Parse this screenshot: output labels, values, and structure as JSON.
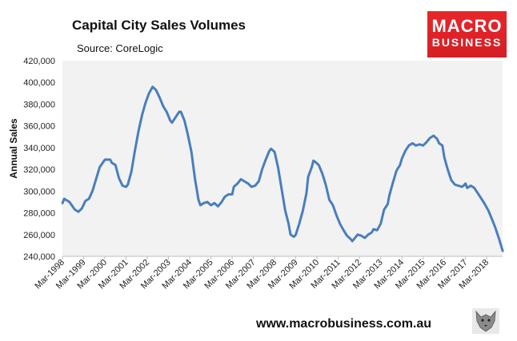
{
  "header": {
    "title": "Capital City Sales Volumes",
    "source": "Source: CoreLogic"
  },
  "logo": {
    "line1": "MACRO",
    "line2": "BUSINESS"
  },
  "footer": {
    "website": "www.macrobusiness.com.au"
  },
  "colors": {
    "line": "#4a7ebb",
    "plot_bg": "#f2f2f2",
    "brand_red": "#e8262b"
  },
  "chart_data": {
    "type": "line",
    "title": "Capital City Sales Volumes",
    "subtitle": "Source: CoreLogic",
    "xlabel": "",
    "ylabel": "Annual Sales",
    "ylim": [
      240000,
      420000
    ],
    "y_ticks": [
      240000,
      260000,
      280000,
      300000,
      320000,
      340000,
      360000,
      380000,
      400000,
      420000
    ],
    "y_tick_labels": [
      "240,000",
      "260,000",
      "280,000",
      "300,000",
      "320,000",
      "340,000",
      "360,000",
      "380,000",
      "400,000",
      "420,000"
    ],
    "x_tick_labels": [
      "Mar-1998",
      "Mar-1999",
      "Mar-2000",
      "Mar-2001",
      "Mar-2002",
      "Mar-2003",
      "Mar-2004",
      "Mar-2005",
      "Mar-2006",
      "Mar-2007",
      "Mar-2008",
      "Mar-2009",
      "Mar-2010",
      "Mar-2011",
      "Mar-2012",
      "Mar-2013",
      "Mar-2014",
      "Mar-2015",
      "Mar-2016",
      "Mar-2017",
      "Mar-2018"
    ],
    "x_start": 1998.167,
    "x_end": 2018.917,
    "series": [
      {
        "name": "Annual Sales",
        "points": [
          [
            1998.17,
            289000
          ],
          [
            1998.25,
            293000
          ],
          [
            1998.5,
            290000
          ],
          [
            1998.75,
            283000
          ],
          [
            1998.92,
            281000
          ],
          [
            1999.08,
            284000
          ],
          [
            1999.25,
            291000
          ],
          [
            1999.42,
            293000
          ],
          [
            1999.58,
            300000
          ],
          [
            1999.75,
            311000
          ],
          [
            1999.92,
            322000
          ],
          [
            2000.17,
            329000
          ],
          [
            2000.42,
            329000
          ],
          [
            2000.5,
            326000
          ],
          [
            2000.67,
            324000
          ],
          [
            2000.83,
            312000
          ],
          [
            2001.0,
            305000
          ],
          [
            2001.17,
            304000
          ],
          [
            2001.25,
            306000
          ],
          [
            2001.42,
            318000
          ],
          [
            2001.58,
            337000
          ],
          [
            2001.75,
            355000
          ],
          [
            2001.92,
            370000
          ],
          [
            2002.08,
            381000
          ],
          [
            2002.25,
            390000
          ],
          [
            2002.42,
            396000
          ],
          [
            2002.58,
            393000
          ],
          [
            2002.75,
            386000
          ],
          [
            2002.92,
            378000
          ],
          [
            2003.08,
            373000
          ],
          [
            2003.25,
            365000
          ],
          [
            2003.33,
            363000
          ],
          [
            2003.5,
            368000
          ],
          [
            2003.67,
            373000
          ],
          [
            2003.75,
            373000
          ],
          [
            2003.92,
            365000
          ],
          [
            2004.08,
            352000
          ],
          [
            2004.25,
            336000
          ],
          [
            2004.42,
            311000
          ],
          [
            2004.58,
            292000
          ],
          [
            2004.67,
            287000
          ],
          [
            2004.83,
            289000
          ],
          [
            2005.0,
            290000
          ],
          [
            2005.17,
            287000
          ],
          [
            2005.33,
            289000
          ],
          [
            2005.5,
            286000
          ],
          [
            2005.67,
            290000
          ],
          [
            2005.83,
            295000
          ],
          [
            2006.0,
            297000
          ],
          [
            2006.17,
            297000
          ],
          [
            2006.25,
            304000
          ],
          [
            2006.42,
            307000
          ],
          [
            2006.58,
            311000
          ],
          [
            2006.75,
            309000
          ],
          [
            2006.92,
            307000
          ],
          [
            2007.08,
            304000
          ],
          [
            2007.25,
            305000
          ],
          [
            2007.42,
            309000
          ],
          [
            2007.58,
            320000
          ],
          [
            2007.75,
            329000
          ],
          [
            2007.92,
            337000
          ],
          [
            2008.0,
            339000
          ],
          [
            2008.17,
            336000
          ],
          [
            2008.33,
            322000
          ],
          [
            2008.5,
            302000
          ],
          [
            2008.67,
            282000
          ],
          [
            2008.83,
            270000
          ],
          [
            2008.92,
            260000
          ],
          [
            2009.08,
            258000
          ],
          [
            2009.17,
            260000
          ],
          [
            2009.33,
            270000
          ],
          [
            2009.5,
            282000
          ],
          [
            2009.67,
            298000
          ],
          [
            2009.75,
            313000
          ],
          [
            2009.92,
            322000
          ],
          [
            2010.0,
            328000
          ],
          [
            2010.08,
            327000
          ],
          [
            2010.25,
            324000
          ],
          [
            2010.42,
            316000
          ],
          [
            2010.58,
            306000
          ],
          [
            2010.75,
            292000
          ],
          [
            2010.92,
            287000
          ],
          [
            2011.08,
            278000
          ],
          [
            2011.25,
            270000
          ],
          [
            2011.42,
            264000
          ],
          [
            2011.58,
            259000
          ],
          [
            2011.75,
            256000
          ],
          [
            2011.83,
            254000
          ],
          [
            2012.0,
            258000
          ],
          [
            2012.08,
            260000
          ],
          [
            2012.25,
            259000
          ],
          [
            2012.42,
            257000
          ],
          [
            2012.58,
            260000
          ],
          [
            2012.75,
            262000
          ],
          [
            2012.83,
            265000
          ],
          [
            2013.0,
            264000
          ],
          [
            2013.17,
            270000
          ],
          [
            2013.33,
            283000
          ],
          [
            2013.5,
            288000
          ],
          [
            2013.58,
            296000
          ],
          [
            2013.75,
            308000
          ],
          [
            2013.92,
            319000
          ],
          [
            2014.08,
            324000
          ],
          [
            2014.17,
            330000
          ],
          [
            2014.33,
            337000
          ],
          [
            2014.5,
            342000
          ],
          [
            2014.67,
            344000
          ],
          [
            2014.83,
            342000
          ],
          [
            2015.0,
            343000
          ],
          [
            2015.17,
            342000
          ],
          [
            2015.33,
            345000
          ],
          [
            2015.5,
            349000
          ],
          [
            2015.67,
            351000
          ],
          [
            2015.83,
            348000
          ],
          [
            2015.92,
            344000
          ],
          [
            2016.08,
            342000
          ],
          [
            2016.17,
            331000
          ],
          [
            2016.33,
            320000
          ],
          [
            2016.5,
            310000
          ],
          [
            2016.67,
            306000
          ],
          [
            2016.83,
            305000
          ],
          [
            2017.0,
            304000
          ],
          [
            2017.08,
            305000
          ],
          [
            2017.17,
            307000
          ],
          [
            2017.25,
            303000
          ],
          [
            2017.42,
            305000
          ],
          [
            2017.58,
            303000
          ],
          [
            2017.75,
            298000
          ],
          [
            2017.92,
            293000
          ],
          [
            2018.08,
            288000
          ],
          [
            2018.25,
            282000
          ],
          [
            2018.42,
            274000
          ],
          [
            2018.58,
            266000
          ],
          [
            2018.75,
            256000
          ],
          [
            2018.92,
            245000
          ]
        ]
      }
    ]
  }
}
